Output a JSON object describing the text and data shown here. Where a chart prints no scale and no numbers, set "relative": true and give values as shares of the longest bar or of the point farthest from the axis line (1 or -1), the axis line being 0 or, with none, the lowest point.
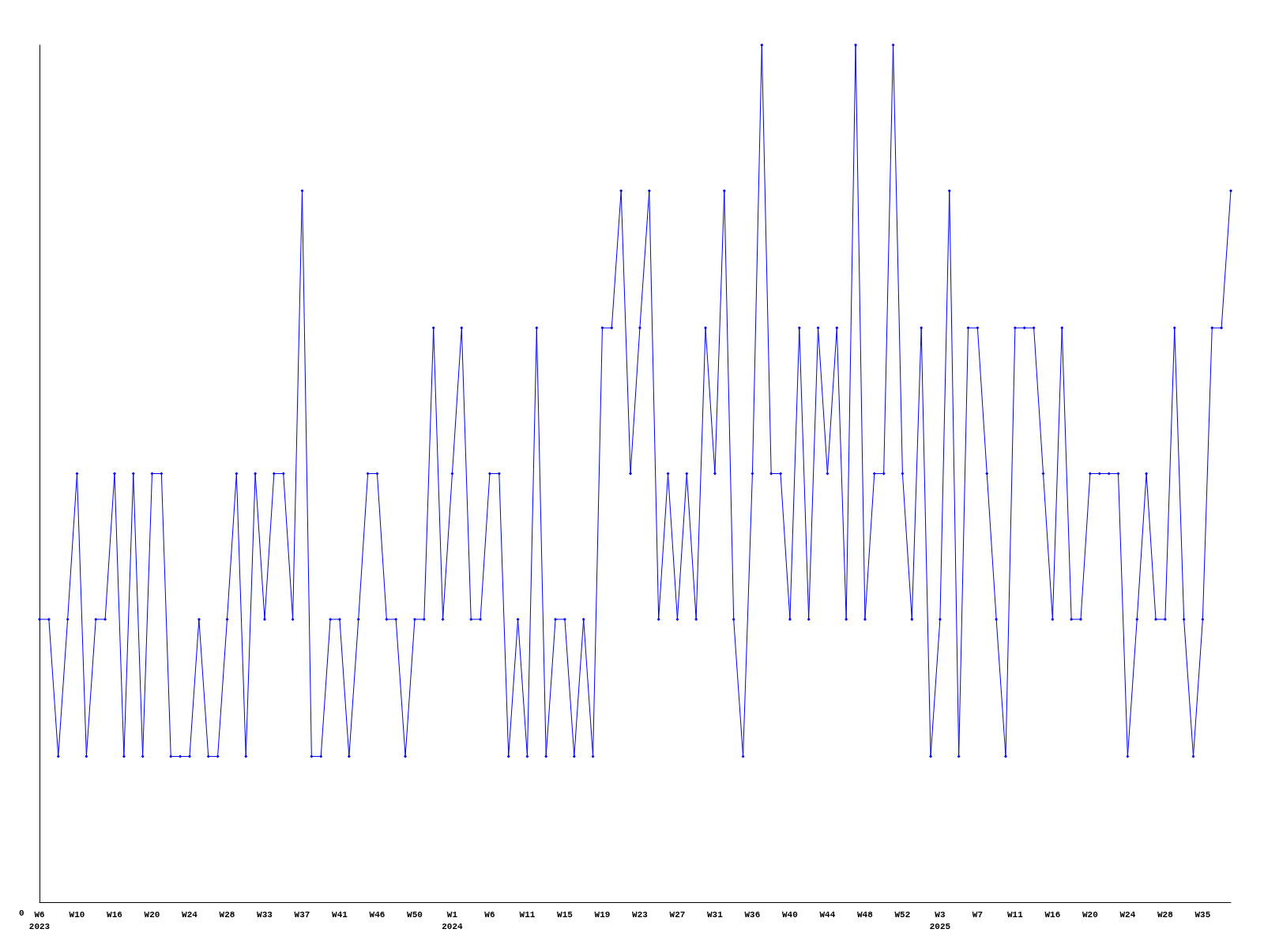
{
  "chart_data": {
    "type": "line",
    "relative": true,
    "color": "#0000ff",
    "marker": "diamond",
    "grid": false,
    "annotations": [
      "0"
    ],
    "categories": [
      "W6\n2023",
      null,
      null,
      null,
      "W10",
      null,
      null,
      null,
      "W16",
      null,
      null,
      null,
      "W20",
      null,
      null,
      null,
      "W24",
      null,
      null,
      null,
      "W28",
      null,
      null,
      null,
      "W33",
      null,
      null,
      null,
      "W37",
      null,
      null,
      null,
      "W41",
      null,
      null,
      null,
      "W46",
      null,
      null,
      null,
      "W50",
      null,
      null,
      null,
      "W1\n2024",
      null,
      null,
      null,
      "W6",
      null,
      null,
      null,
      "W11",
      null,
      null,
      null,
      "W15",
      null,
      null,
      null,
      "W19",
      null,
      null,
      null,
      "W23",
      null,
      null,
      null,
      "W27",
      null,
      null,
      null,
      "W31",
      null,
      null,
      null,
      "W36",
      null,
      null,
      null,
      "W40",
      null,
      null,
      null,
      "W44",
      null,
      null,
      null,
      "W48",
      null,
      null,
      null,
      "W52",
      null,
      null,
      null,
      "W3\n2025",
      null,
      null,
      null,
      "W7",
      null,
      null,
      null,
      "W11",
      null,
      null,
      null,
      "W16",
      null,
      null,
      null,
      "W20",
      null,
      null,
      null,
      "W24",
      null,
      null,
      null,
      "W28",
      null,
      null,
      null,
      "W35",
      null,
      null,
      null
    ],
    "values": [
      0.33,
      0.33,
      0.17,
      0.33,
      0.5,
      0.17,
      0.33,
      0.33,
      0.5,
      0.17,
      0.5,
      0.17,
      0.5,
      0.5,
      0.17,
      0.17,
      0.17,
      0.33,
      0.17,
      0.17,
      0.33,
      0.5,
      0.17,
      0.5,
      0.33,
      0.5,
      0.5,
      0.33,
      0.83,
      0.17,
      0.17,
      0.33,
      0.33,
      0.17,
      0.33,
      0.5,
      0.5,
      0.33,
      0.33,
      0.17,
      0.33,
      0.33,
      0.67,
      0.33,
      0.5,
      0.67,
      0.33,
      0.33,
      0.5,
      0.5,
      0.17,
      0.33,
      0.17,
      0.67,
      0.17,
      0.33,
      0.33,
      0.17,
      0.33,
      0.17,
      0.67,
      0.67,
      0.83,
      0.5,
      0.67,
      0.83,
      0.33,
      0.5,
      0.33,
      0.5,
      0.33,
      0.67,
      0.5,
      0.83,
      0.33,
      0.17,
      0.5,
      1,
      0.5,
      0.5,
      0.33,
      0.67,
      0.33,
      0.67,
      0.5,
      0.67,
      0.33,
      1,
      0.33,
      0.5,
      0.5,
      1,
      0.5,
      0.33,
      0.67,
      0.17,
      0.33,
      0.83,
      0.17,
      0.67,
      0.67,
      0.5,
      0.33,
      0.17,
      0.67,
      0.67,
      0.67,
      0.5,
      0.33,
      0.67,
      0.33,
      0.33,
      0.5,
      0.5,
      0.5,
      0.5,
      0.17,
      0.33,
      0.5,
      0.33,
      0.33,
      0.67,
      0.33,
      0.17,
      0.33,
      0.67,
      0.67,
      0.83
    ]
  }
}
